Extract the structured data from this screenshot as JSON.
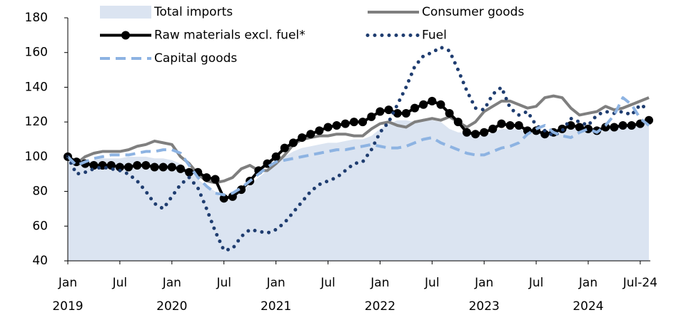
{
  "chart_data": {
    "type": "line",
    "categories": [
      "Jan",
      null,
      null,
      null,
      null,
      null,
      "Jul",
      null,
      null,
      null,
      null,
      null,
      "Jan",
      null,
      null,
      null,
      null,
      null,
      "Jul",
      null,
      null,
      null,
      null,
      null,
      "Jan",
      null,
      null,
      null,
      null,
      null,
      "Jul",
      null,
      null,
      null,
      null,
      null,
      "Jan",
      null,
      null,
      null,
      null,
      null,
      "Jul",
      null,
      null,
      null,
      null,
      null,
      "Jan",
      null,
      null,
      null,
      null,
      null,
      "Jul",
      null,
      null,
      null,
      null,
      null,
      "Jan",
      null,
      null,
      null,
      null,
      null,
      "Jul-24",
      null
    ],
    "year_labels": [
      "2019",
      null,
      null,
      null,
      null,
      null,
      null,
      null,
      null,
      null,
      null,
      null,
      "2020",
      null,
      null,
      null,
      null,
      null,
      null,
      null,
      null,
      null,
      null,
      null,
      "2021",
      null,
      null,
      null,
      null,
      null,
      null,
      null,
      null,
      null,
      null,
      null,
      "2022",
      null,
      null,
      null,
      null,
      null,
      null,
      null,
      null,
      null,
      null,
      null,
      "2023",
      null,
      null,
      null,
      null,
      null,
      null,
      null,
      null,
      null,
      null,
      null,
      "2024",
      null,
      null,
      null,
      null,
      null,
      null,
      null
    ],
    "series": [
      {
        "name": "Total imports",
        "kind": "area",
        "color": "#dbe4f1",
        "values": [
          100,
          95,
          97,
          98,
          99,
          99,
          99,
          100,
          100,
          100,
          99,
          99,
          98,
          96,
          92,
          87,
          83,
          80,
          74,
          76,
          80,
          84,
          88,
          92,
          96,
          100,
          103,
          105,
          106,
          107,
          108,
          108,
          109,
          110,
          110,
          112,
          116,
          119,
          121,
          121,
          120,
          122,
          121,
          120,
          116,
          114,
          114,
          115,
          113,
          114,
          116,
          116,
          116,
          115,
          114,
          114,
          115,
          116,
          117,
          116,
          114,
          115,
          116,
          117,
          118,
          118,
          118,
          119
        ]
      },
      {
        "name": "Consumer goods",
        "kind": "line",
        "dash": "solid",
        "color": "#7f7f7f",
        "values": [
          100,
          96,
          100,
          102,
          103,
          103,
          103,
          104,
          106,
          107,
          109,
          108,
          107,
          100,
          96,
          90,
          86,
          85,
          86,
          88,
          93,
          95,
          92,
          92,
          96,
          101,
          107,
          110,
          111,
          112,
          112,
          113,
          113,
          112,
          112,
          116,
          119,
          120,
          118,
          117,
          120,
          121,
          122,
          121,
          123,
          120,
          117,
          120,
          126,
          129,
          132,
          132,
          130,
          128,
          129,
          134,
          135,
          134,
          128,
          124,
          125,
          126,
          129,
          127,
          128,
          130,
          132,
          134
        ]
      },
      {
        "name": "Raw materials excl. fuel*",
        "kind": "line",
        "dash": "solid",
        "markers": true,
        "color": "#000000",
        "values": [
          100,
          97,
          96,
          95,
          95,
          95,
          94,
          94,
          95,
          95,
          94,
          94,
          94,
          93,
          91,
          91,
          88,
          87,
          76,
          77,
          81,
          86,
          92,
          96,
          100,
          105,
          108,
          111,
          113,
          115,
          117,
          118,
          119,
          120,
          120,
          123,
          126,
          127,
          125,
          125,
          128,
          130,
          132,
          130,
          125,
          120,
          114,
          113,
          114,
          116,
          119,
          118,
          118,
          115,
          115,
          113,
          114,
          116,
          118,
          117,
          116,
          115,
          117,
          117,
          118,
          118,
          119,
          121
        ]
      },
      {
        "name": "Fuel",
        "kind": "line",
        "dash": "dotted",
        "color": "#1f3d70",
        "values": [
          100,
          90,
          91,
          93,
          94,
          93,
          92,
          90,
          86,
          80,
          73,
          70,
          77,
          84,
          88,
          82,
          70,
          57,
          46,
          47,
          54,
          58,
          57,
          56,
          58,
          62,
          68,
          74,
          80,
          84,
          86,
          88,
          92,
          96,
          97,
          104,
          114,
          120,
          130,
          140,
          152,
          158,
          160,
          163,
          161,
          150,
          138,
          128,
          127,
          136,
          140,
          128,
          124,
          126,
          118,
          115,
          112,
          115,
          122,
          120,
          118,
          124,
          126,
          125,
          126,
          124,
          130,
          127
        ]
      },
      {
        "name": "Capital goods",
        "kind": "line",
        "dash": "dashed",
        "color": "#8db3e2",
        "values": [
          100,
          95,
          97,
          99,
          100,
          101,
          101,
          101,
          102,
          103,
          103,
          104,
          104,
          102,
          95,
          88,
          83,
          79,
          78,
          79,
          82,
          86,
          90,
          94,
          97,
          98,
          99,
          100,
          101,
          102,
          103,
          104,
          104,
          105,
          106,
          107,
          106,
          105,
          105,
          106,
          108,
          110,
          111,
          108,
          106,
          104,
          102,
          101,
          101,
          103,
          105,
          106,
          108,
          113,
          116,
          118,
          114,
          112,
          111,
          114,
          116,
          114,
          118,
          124,
          134,
          130,
          122,
          118
        ]
      }
    ],
    "ylim": [
      40,
      180
    ],
    "yticks": [
      40,
      60,
      80,
      100,
      120,
      140,
      160,
      180
    ],
    "grid": false
  }
}
